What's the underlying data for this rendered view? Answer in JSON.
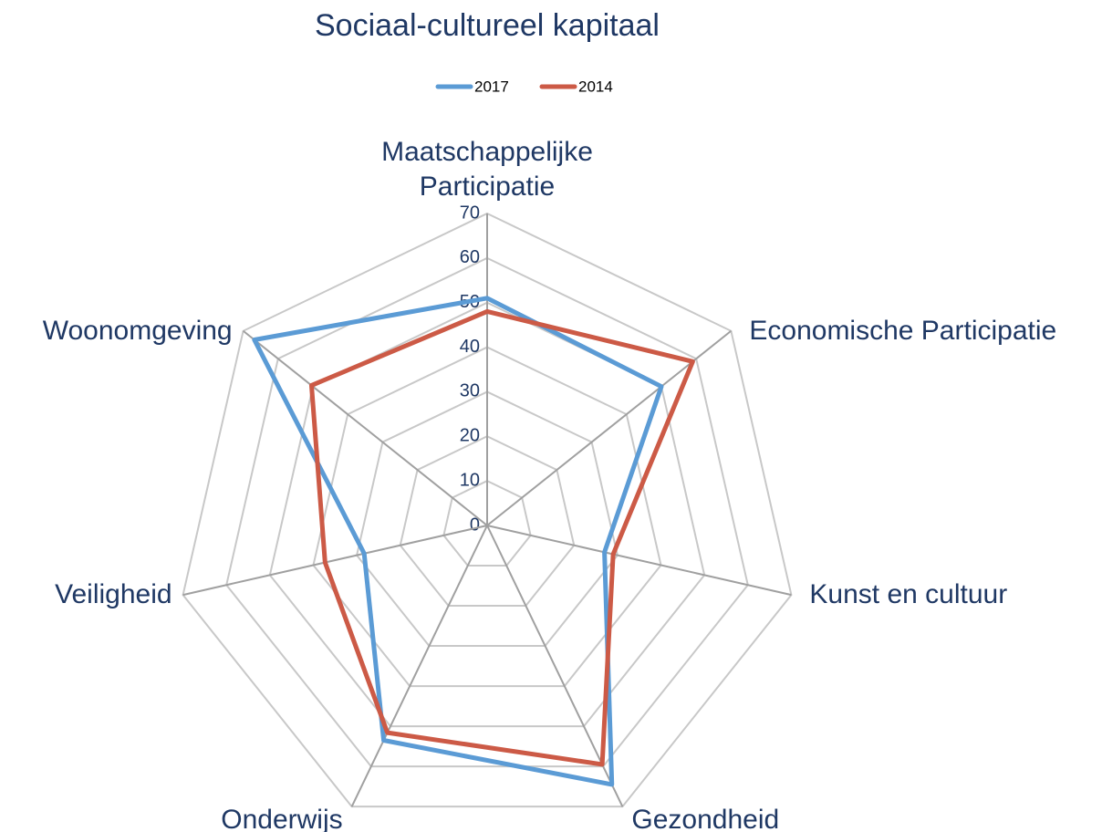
{
  "chart_data": {
    "type": "radar",
    "title": "Sociaal-cultureel kapitaal",
    "categories": [
      "Maatschappelijke Participatie",
      "Economische Participatie",
      "Kunst en cultuur",
      "Gezondheid",
      "Onderwijs",
      "Veiligheid",
      "Woonomgeving"
    ],
    "series": [
      {
        "name": "2017",
        "color": "#5b9bd5",
        "values": [
          51,
          50,
          27,
          64.5,
          53.5,
          28.3,
          66.8
        ]
      },
      {
        "name": "2014",
        "color": "#cc5a46",
        "values": [
          48,
          59,
          29,
          59.5,
          51.6,
          37.3,
          50.4
        ]
      }
    ],
    "ylim": [
      0,
      70
    ],
    "yticks": [
      0,
      10,
      20,
      30,
      40,
      50,
      60,
      70
    ],
    "grid": true,
    "legend": "top"
  }
}
